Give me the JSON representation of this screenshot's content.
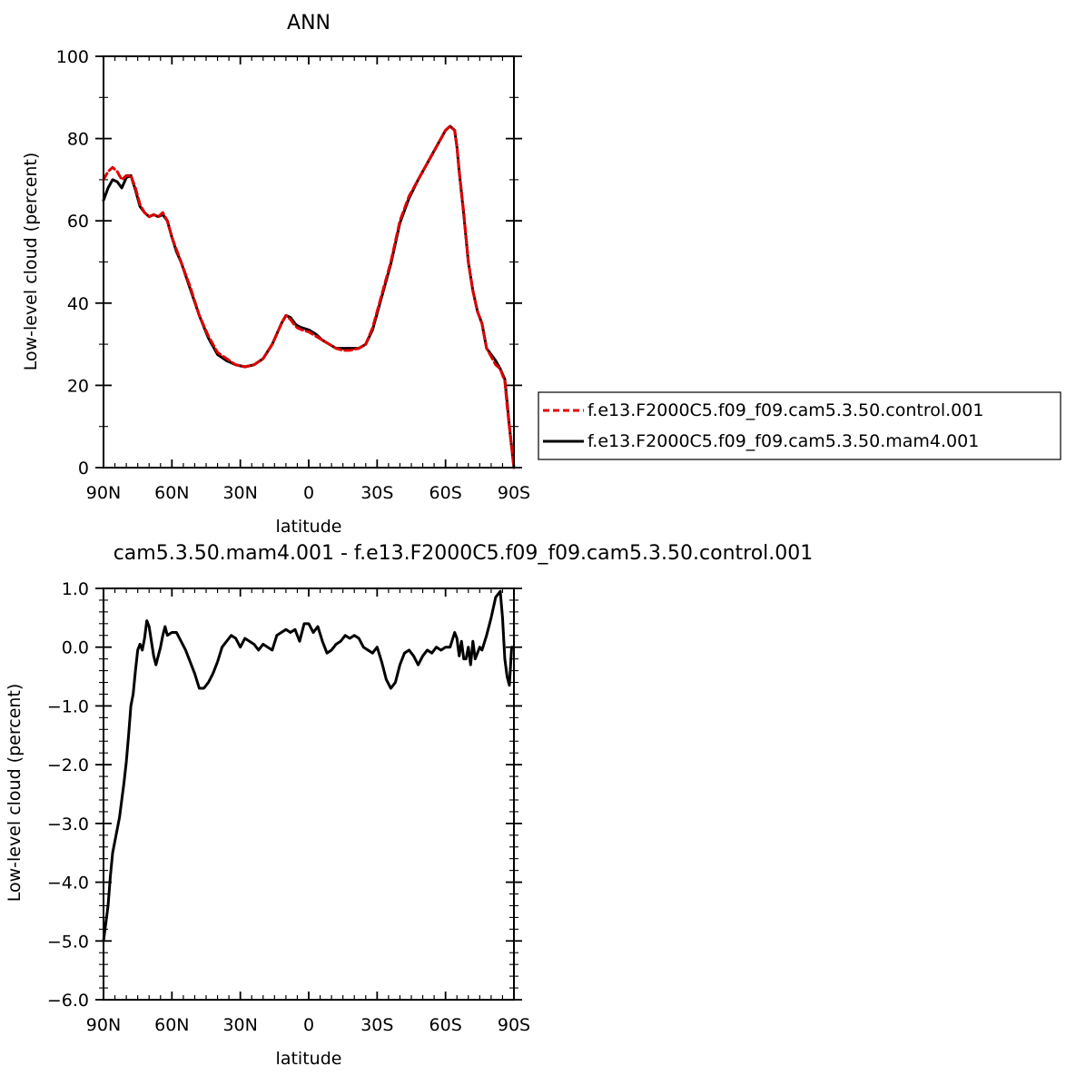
{
  "chart_data": [
    {
      "type": "line",
      "title": "ANN",
      "xlabel": "latitude",
      "ylabel": "Low-level cloud (percent)",
      "xlim": [
        90,
        -90
      ],
      "ylim": [
        0,
        100
      ],
      "xticks": [
        {
          "value": 90,
          "label": "90N"
        },
        {
          "value": 60,
          "label": "60N"
        },
        {
          "value": 30,
          "label": "30N"
        },
        {
          "value": 0,
          "label": "0"
        },
        {
          "value": -30,
          "label": "30S"
        },
        {
          "value": -60,
          "label": "60S"
        },
        {
          "value": -90,
          "label": "90S"
        }
      ],
      "yticks": [
        {
          "value": 0,
          "label": "0"
        },
        {
          "value": 20,
          "label": "20"
        },
        {
          "value": 40,
          "label": "40"
        },
        {
          "value": 60,
          "label": "60"
        },
        {
          "value": 80,
          "label": "80"
        },
        {
          "value": 100,
          "label": "100"
        }
      ],
      "grid": false,
      "legend_position": "right",
      "series": [
        {
          "name": "f.e13.F2000C5.f09_f09.cam5.3.50.control.001",
          "color": "#e00000",
          "style": "dashed",
          "x": [
            90,
            88,
            86,
            84,
            82,
            80,
            78,
            76,
            74,
            72,
            70,
            68,
            66,
            64,
            62,
            60,
            58,
            56,
            52,
            48,
            44,
            40,
            36,
            32,
            28,
            24,
            20,
            16,
            12,
            10,
            8,
            6,
            5,
            3,
            0,
            -3,
            -6,
            -9,
            -12,
            -15,
            -18,
            -22,
            -25,
            -28,
            -32,
            -36,
            -40,
            -44,
            -48,
            -52,
            -56,
            -60,
            -62,
            -64,
            -65,
            -66,
            -68,
            -70,
            -72,
            -74,
            -76,
            -78,
            -80,
            -82,
            -84,
            -86,
            -87,
            -88,
            -89,
            -90
          ],
          "y": [
            70,
            72,
            73,
            72,
            70,
            71,
            71,
            68,
            64,
            62,
            61,
            61.5,
            61,
            62,
            60,
            56,
            53,
            50,
            44,
            37,
            32,
            28,
            26.5,
            25,
            24.5,
            25,
            26.5,
            30,
            35,
            37,
            36,
            34.5,
            34,
            33.5,
            33,
            32,
            31,
            30,
            29,
            28.5,
            28.5,
            29,
            30,
            34,
            42,
            50,
            60,
            66,
            70,
            74,
            78,
            82,
            83,
            82,
            78,
            72,
            62,
            50,
            43,
            38,
            35,
            29,
            27,
            25,
            24,
            21,
            15,
            10,
            5,
            0
          ]
        },
        {
          "name": "f.e13.F2000C5.f09_f09.cam5.3.50.mam4.001",
          "color": "#000000",
          "style": "solid",
          "x": [
            90,
            88,
            86,
            84,
            82,
            80,
            78,
            76,
            74,
            72,
            70,
            68,
            66,
            64,
            62,
            60,
            58,
            56,
            52,
            48,
            44,
            40,
            36,
            32,
            28,
            24,
            20,
            16,
            12,
            10,
            8,
            6,
            5,
            3,
            0,
            -3,
            -6,
            -9,
            -12,
            -15,
            -18,
            -22,
            -25,
            -28,
            -32,
            -36,
            -40,
            -44,
            -48,
            -52,
            -56,
            -60,
            -62,
            -64,
            -65,
            -66,
            -68,
            -70,
            -72,
            -74,
            -76,
            -78,
            -80,
            -82,
            -84,
            -86,
            -87,
            -88,
            -89,
            -90
          ],
          "y": [
            65,
            68,
            70,
            69.5,
            68,
            70.5,
            71,
            67.5,
            63.5,
            62,
            61,
            61.5,
            61,
            61.5,
            60,
            56,
            52.5,
            50,
            43.5,
            37,
            31.5,
            27.5,
            26,
            25,
            24.5,
            25,
            26.5,
            30,
            35,
            37,
            36.5,
            35,
            34.5,
            34,
            33.5,
            32.5,
            31,
            30,
            29,
            29,
            29,
            29,
            30,
            33.5,
            41.5,
            49.5,
            59.5,
            65.5,
            70,
            74,
            78,
            82,
            83,
            82,
            78,
            72,
            61.5,
            50,
            43,
            38,
            35,
            29,
            27.5,
            26,
            24,
            21.5,
            16,
            10,
            5,
            0
          ]
        }
      ]
    },
    {
      "type": "line",
      "title": "cam5.3.50.mam4.001 - f.e13.F2000C5.f09_f09.cam5.3.50.control.001",
      "xlabel": "latitude",
      "ylabel": "Low-level cloud (percent)",
      "xlim": [
        90,
        -90
      ],
      "ylim": [
        -6,
        1
      ],
      "xticks": [
        {
          "value": 90,
          "label": "90N"
        },
        {
          "value": 60,
          "label": "60N"
        },
        {
          "value": 30,
          "label": "30N"
        },
        {
          "value": 0,
          "label": "0"
        },
        {
          "value": -30,
          "label": "30S"
        },
        {
          "value": -60,
          "label": "60S"
        },
        {
          "value": -90,
          "label": "90S"
        }
      ],
      "yticks": [
        {
          "value": -6,
          "label": "−6.0"
        },
        {
          "value": -5,
          "label": "−5.0"
        },
        {
          "value": -4,
          "label": "−4.0"
        },
        {
          "value": -3,
          "label": "−3.0"
        },
        {
          "value": -2,
          "label": "−2.0"
        },
        {
          "value": -1,
          "label": "−1.0"
        },
        {
          "value": 0,
          "label": "0.0"
        },
        {
          "value": 1,
          "label": "1.0"
        }
      ],
      "grid": false,
      "series": [
        {
          "color": "#000000",
          "style": "solid",
          "x": [
            90,
            89,
            88,
            87,
            86,
            85,
            84,
            83,
            82,
            81,
            80,
            79,
            78,
            77,
            76,
            75,
            74,
            73,
            72,
            71,
            70,
            69,
            68,
            67,
            66,
            65,
            64,
            63,
            62,
            60,
            58,
            56,
            54,
            52,
            50,
            48,
            46,
            44,
            42,
            40,
            38,
            36,
            34,
            32,
            30,
            28,
            26,
            24,
            22,
            20,
            18,
            16,
            14,
            12,
            10,
            8,
            6,
            4,
            2,
            0,
            -2,
            -4,
            -6,
            -8,
            -10,
            -12,
            -14,
            -16,
            -18,
            -20,
            -22,
            -24,
            -26,
            -28,
            -30,
            -32,
            -34,
            -36,
            -38,
            -40,
            -42,
            -44,
            -46,
            -48,
            -50,
            -52,
            -54,
            -56,
            -58,
            -60,
            -62,
            -64,
            -65,
            -66,
            -67,
            -68,
            -69,
            -70,
            -71,
            -72,
            -73,
            -74,
            -75,
            -76,
            -78,
            -80,
            -82,
            -84,
            -85,
            -86,
            -87,
            -88,
            -89,
            -90
          ],
          "y": [
            -5.0,
            -4.7,
            -4.4,
            -3.9,
            -3.5,
            -3.3,
            -3.1,
            -2.9,
            -2.6,
            -2.3,
            -1.95,
            -1.5,
            -1.0,
            -0.8,
            -0.4,
            -0.05,
            0.05,
            -0.05,
            0.15,
            0.45,
            0.35,
            0.1,
            -0.15,
            -0.3,
            -0.15,
            0.0,
            0.2,
            0.35,
            0.2,
            0.25,
            0.25,
            0.1,
            -0.05,
            -0.25,
            -0.45,
            -0.7,
            -0.7,
            -0.6,
            -0.45,
            -0.25,
            0.0,
            0.1,
            0.2,
            0.15,
            0.0,
            0.15,
            0.1,
            0.05,
            -0.05,
            0.05,
            0.0,
            -0.05,
            0.2,
            0.25,
            0.3,
            0.25,
            0.3,
            0.1,
            0.4,
            0.4,
            0.25,
            0.35,
            0.1,
            -0.1,
            -0.05,
            0.05,
            0.1,
            0.2,
            0.15,
            0.2,
            0.15,
            0.0,
            -0.05,
            -0.1,
            0.0,
            -0.25,
            -0.55,
            -0.7,
            -0.6,
            -0.3,
            -0.1,
            -0.05,
            -0.15,
            -0.3,
            -0.15,
            -0.05,
            -0.1,
            0.0,
            -0.05,
            0.0,
            0.0,
            0.25,
            0.15,
            -0.15,
            0.1,
            -0.2,
            -0.2,
            0.0,
            -0.3,
            0.1,
            -0.2,
            -0.1,
            0.0,
            -0.05,
            0.2,
            0.5,
            0.85,
            0.95,
            0.5,
            -0.2,
            -0.5,
            -0.65,
            0.0,
            0.0
          ]
        }
      ]
    }
  ],
  "colors": {
    "background": "#ffffff",
    "axis": "#000000"
  }
}
